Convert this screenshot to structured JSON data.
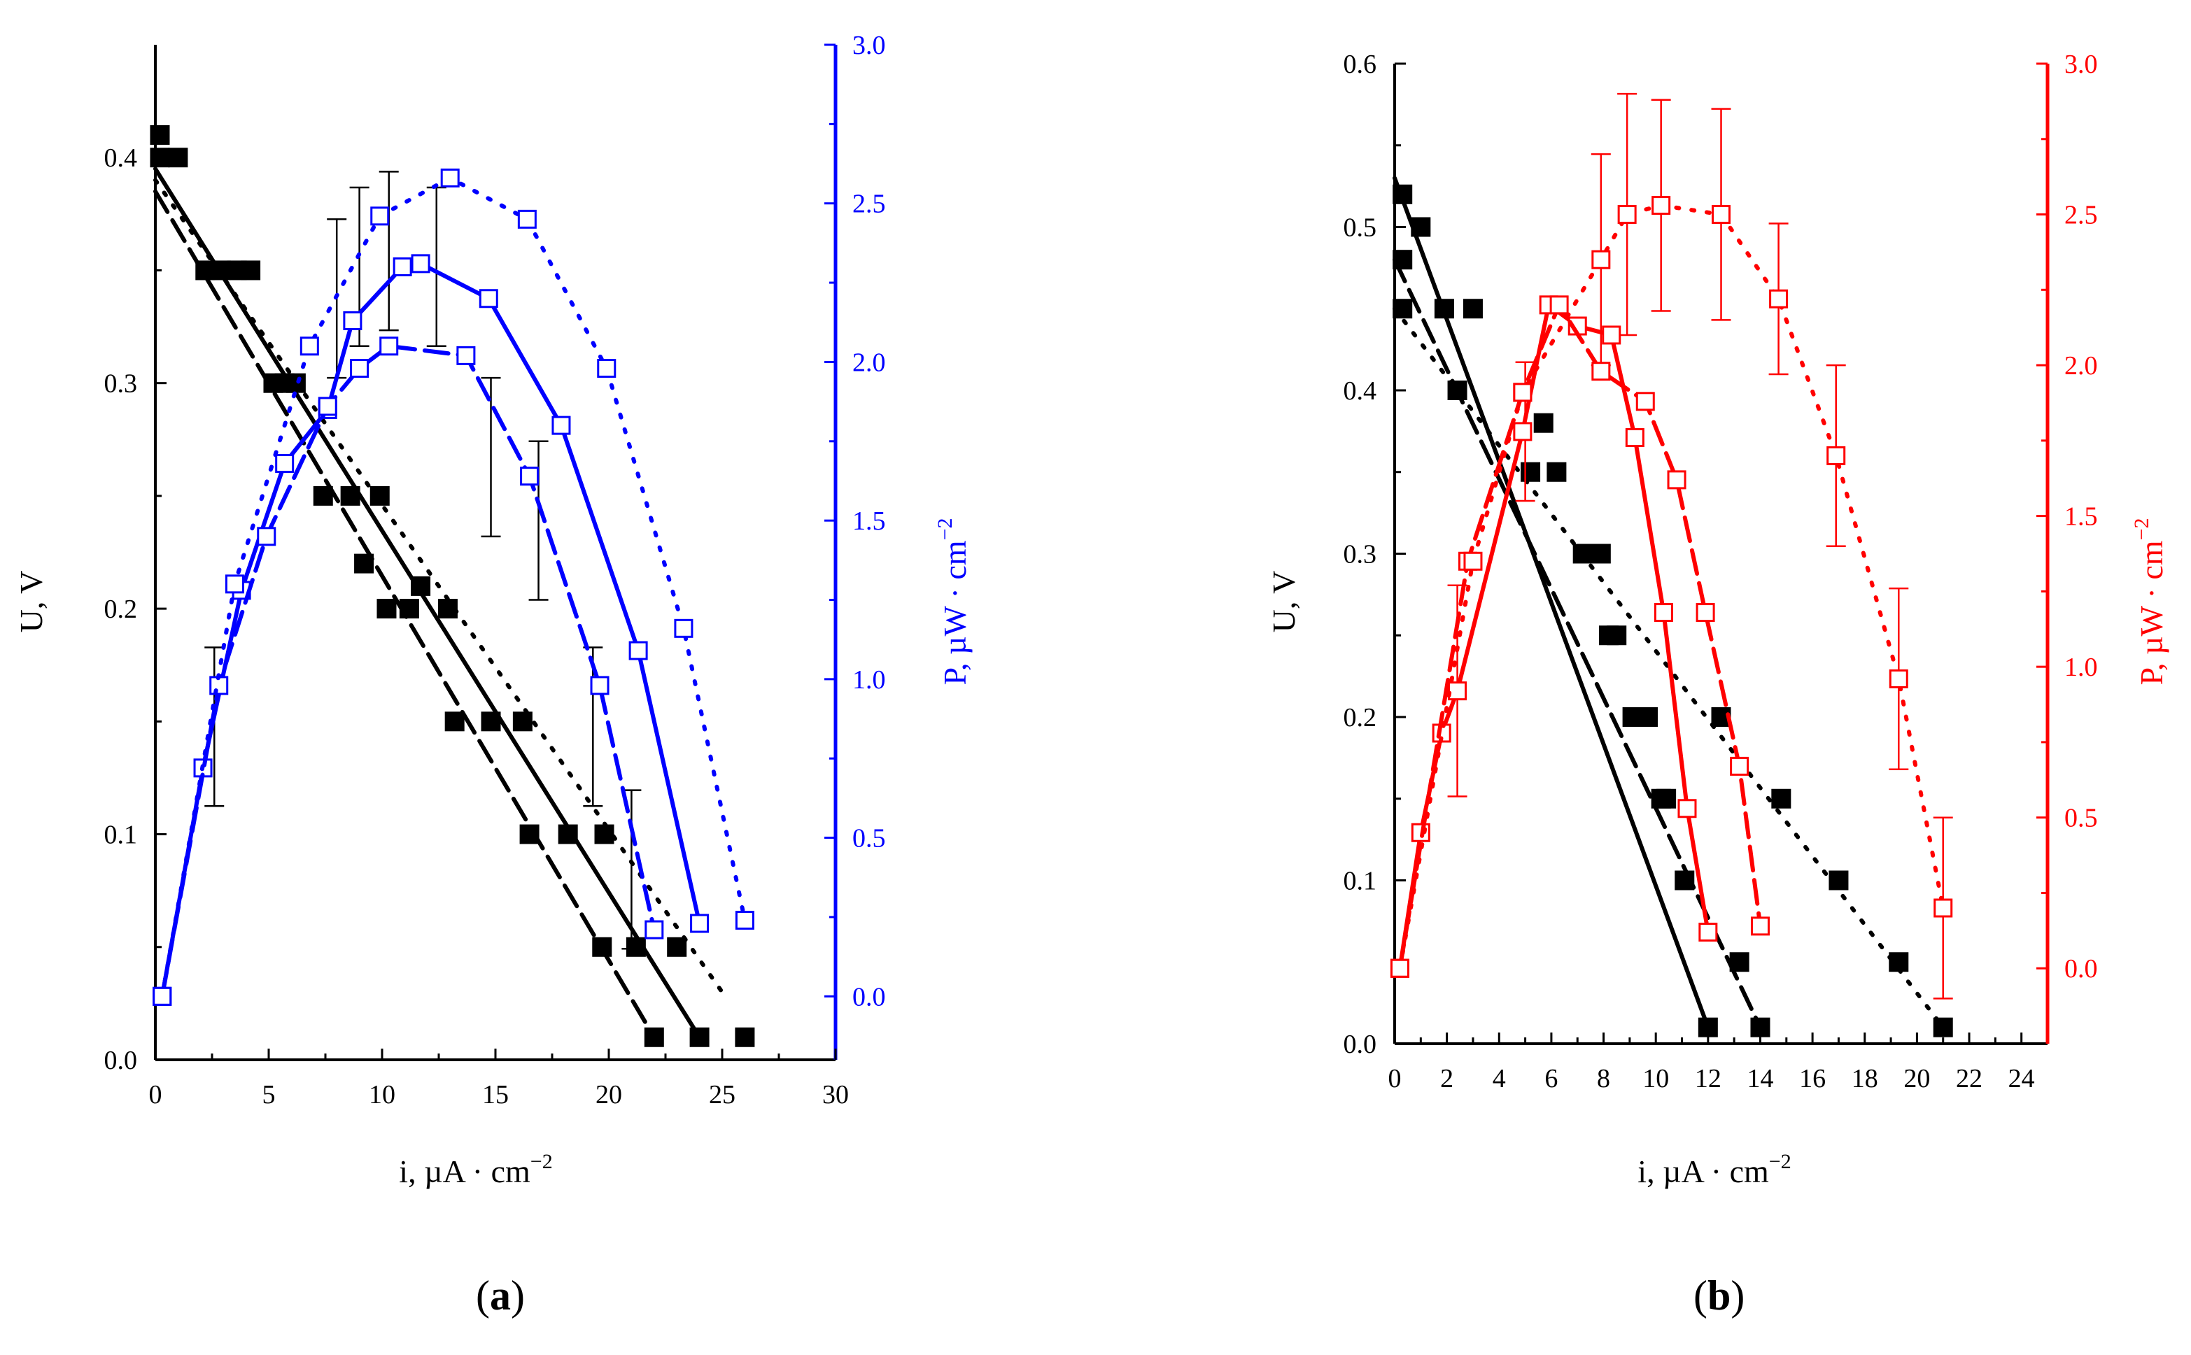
{
  "colors": {
    "black": "#000000",
    "blue": "#0000ff",
    "red": "#ff0000"
  },
  "panels": [
    {
      "label": "a"
    },
    {
      "label": "b"
    }
  ],
  "chart_data": [
    {
      "type": "scatter",
      "panel": "a",
      "xlabel": "i, µA · cm",
      "xlabel_sup": "−2",
      "ylabel_left": "U, V",
      "ylabel_right": "P, µW · cm",
      "ylabel_right_sup": "−2",
      "xlim": [
        0,
        30
      ],
      "ylim_left": [
        0,
        0.45
      ],
      "ylim_right": [
        -0.2,
        3.0
      ],
      "xticks": [
        0,
        5,
        10,
        15,
        20,
        25,
        30
      ],
      "yticks_left": [
        0.0,
        0.1,
        0.2,
        0.3,
        0.4
      ],
      "yticks_right": [
        0.0,
        0.5,
        1.0,
        1.5,
        2.0,
        2.5,
        3.0
      ],
      "tick_labels": {
        "x": [
          "0",
          "5",
          "10",
          "15",
          "20",
          "25",
          "30"
        ],
        "yl": [
          "0.0",
          "0.1",
          "0.2",
          "0.3",
          "0.4"
        ],
        "yr": [
          "0.0",
          "0.5",
          "1.0",
          "1.5",
          "2.0",
          "2.5",
          "3.0"
        ]
      },
      "right_color": "#0000ff",
      "voltage_series": [
        {
          "name": "U solid",
          "style": "solid",
          "fit": [
            [
              0,
              0.395
            ],
            [
              24,
              0.01
            ]
          ],
          "x": [
            0.2,
            2.2,
            4.2,
            6.2,
            9.2,
            11.2,
            13.2,
            16.2,
            18.2,
            21.2,
            24.0
          ],
          "y": [
            0.41,
            0.35,
            0.35,
            0.3,
            0.22,
            0.2,
            0.15,
            0.15,
            0.1,
            0.05,
            0.01
          ]
        },
        {
          "name": "U dashed",
          "style": "dashed",
          "fit": [
            [
              0,
              0.385
            ],
            [
              22,
              0.01
            ]
          ],
          "x": [
            0.2,
            2.9,
            5.2,
            7.4,
            10.2,
            11.7,
            14.8,
            16.5,
            19.7,
            22.0
          ],
          "y": [
            0.4,
            0.35,
            0.3,
            0.25,
            0.2,
            0.21,
            0.15,
            0.1,
            0.05,
            0.01
          ]
        },
        {
          "name": "U dotted",
          "style": "dotted",
          "fit": [
            [
              0,
              0.39
            ],
            [
              25,
              0.03
            ]
          ],
          "x": [
            1.0,
            3.6,
            5.7,
            8.6,
            9.9,
            12.9,
            19.8,
            23.0,
            26.0
          ],
          "y": [
            0.4,
            0.35,
            0.3,
            0.25,
            0.25,
            0.2,
            0.1,
            0.05,
            0.01
          ]
        }
      ],
      "power_series": [
        {
          "name": "P solid",
          "style": "solid",
          "x": [
            0.3,
            2.1,
            3.8,
            5.7,
            7.6,
            8.7,
            10.9,
            11.7,
            14.7,
            17.9,
            21.3,
            24.0
          ],
          "y": [
            0.0,
            0.72,
            1.28,
            1.68,
            1.85,
            2.13,
            2.3,
            2.31,
            2.2,
            1.8,
            1.09,
            0.23
          ]
        },
        {
          "name": "P dashed",
          "style": "dashed",
          "x": [
            0.3,
            2.8,
            4.9,
            7.6,
            9.0,
            10.3,
            13.7,
            16.5,
            19.6,
            22.0
          ],
          "y": [
            0.0,
            0.98,
            1.45,
            1.86,
            1.98,
            2.05,
            2.02,
            1.64,
            0.98,
            0.21
          ]
        },
        {
          "name": "P dotted",
          "style": "dotted",
          "x": [
            0.3,
            3.5,
            6.8,
            9.9,
            13.0,
            16.4,
            19.9,
            23.3,
            26.0
          ],
          "y": [
            0.0,
            1.3,
            2.05,
            2.46,
            2.58,
            2.45,
            1.98,
            1.16,
            0.24
          ]
        }
      ],
      "error_bars": [
        {
          "x": 2.6,
          "y": 0.85,
          "err": 0.25
        },
        {
          "x": 8.0,
          "y": 2.2,
          "err": 0.25
        },
        {
          "x": 9.0,
          "y": 2.3,
          "err": 0.25
        },
        {
          "x": 10.3,
          "y": 2.35,
          "err": 0.25
        },
        {
          "x": 12.4,
          "y": 2.3,
          "err": 0.25
        },
        {
          "x": 14.8,
          "y": 1.7,
          "err": 0.25
        },
        {
          "x": 16.9,
          "y": 1.5,
          "err": 0.25
        },
        {
          "x": 19.3,
          "y": 0.85,
          "err": 0.25
        },
        {
          "x": 21.0,
          "y": 0.4,
          "err": 0.25
        }
      ]
    },
    {
      "type": "scatter",
      "panel": "b",
      "xlabel": "i, µA · cm",
      "xlabel_sup": "−2",
      "ylabel_left": "U, V",
      "ylabel_right": "P, µW · cm",
      "ylabel_right_sup": "−2",
      "xlim": [
        0,
        25
      ],
      "ylim_left": [
        0,
        0.6
      ],
      "ylim_right": [
        -0.25,
        3.0
      ],
      "xticks": [
        0,
        2,
        4,
        6,
        8,
        10,
        12,
        14,
        16,
        18,
        20,
        22,
        24
      ],
      "yticks_left": [
        0.0,
        0.1,
        0.2,
        0.3,
        0.4,
        0.5,
        0.6
      ],
      "yticks_right": [
        0.0,
        0.5,
        1.0,
        1.5,
        2.0,
        2.5,
        3.0
      ],
      "tick_labels": {
        "x": [
          "0",
          "2",
          "4",
          "6",
          "8",
          "10",
          "12",
          "14",
          "16",
          "18",
          "20",
          "22",
          "24"
        ],
        "yl": [
          "0.0",
          "0.1",
          "0.2",
          "0.3",
          "0.4",
          "0.5",
          "0.6"
        ],
        "yr": [
          "0.0",
          "0.5",
          "1.0",
          "1.5",
          "2.0",
          "2.5",
          "3.0"
        ]
      },
      "right_color": "#ff0000",
      "voltage_series": [
        {
          "name": "U solid",
          "style": "solid",
          "fit": [
            [
              0,
              0.53
            ],
            [
              12,
              0.01
            ]
          ],
          "x": [
            0.3,
            1.0,
            1.9,
            5.2,
            6.2,
            7.2,
            8.2,
            9.1,
            10.2,
            11.1,
            12.0
          ],
          "y": [
            0.52,
            0.5,
            0.45,
            0.35,
            0.35,
            0.3,
            0.25,
            0.2,
            0.15,
            0.1,
            0.01
          ]
        },
        {
          "name": "U dashed",
          "style": "dashed",
          "fit": [
            [
              0,
              0.48
            ],
            [
              14,
              0.01
            ]
          ],
          "x": [
            0.3,
            2.4,
            5.7,
            7.9,
            9.7,
            12.5,
            13.2,
            14.0
          ],
          "y": [
            0.48,
            0.4,
            0.38,
            0.3,
            0.2,
            0.2,
            0.05,
            0.01
          ]
        },
        {
          "name": "U dotted",
          "style": "dotted",
          "fit": [
            [
              0,
              0.45
            ],
            [
              21,
              0.01
            ]
          ],
          "x": [
            0.3,
            3.0,
            8.5,
            10.4,
            14.8,
            17.0,
            19.3,
            21.0
          ],
          "y": [
            0.45,
            0.45,
            0.25,
            0.15,
            0.15,
            0.1,
            0.05,
            0.01
          ]
        }
      ],
      "power_series": [
        {
          "name": "P solid",
          "style": "solid",
          "x": [
            0.2,
            1.0,
            1.8,
            2.4,
            4.9,
            5.9,
            7.0,
            8.3,
            9.2,
            10.3,
            11.2,
            12.0
          ],
          "y": [
            0.0,
            0.45,
            0.78,
            0.92,
            1.78,
            2.2,
            2.13,
            2.1,
            1.76,
            1.18,
            0.53,
            0.12
          ]
        },
        {
          "name": "P dashed",
          "style": "dashed",
          "x": [
            0.2,
            2.8,
            4.9,
            6.3,
            7.9,
            9.6,
            10.8,
            11.9,
            13.2,
            14.0
          ],
          "y": [
            0.0,
            1.35,
            1.91,
            2.2,
            1.98,
            1.88,
            1.62,
            1.18,
            0.67,
            0.14
          ]
        },
        {
          "name": "P dotted",
          "style": "dotted",
          "x": [
            0.2,
            3.0,
            4.9,
            7.9,
            8.9,
            10.2,
            12.5,
            14.7,
            16.9,
            19.3,
            21.0
          ],
          "y": [
            0.0,
            1.35,
            1.91,
            2.35,
            2.5,
            2.53,
            2.5,
            2.22,
            1.7,
            0.96,
            0.2
          ]
        }
      ],
      "error_bars": [
        {
          "x": 2.4,
          "y": 0.92,
          "err": 0.35
        },
        {
          "x": 5.0,
          "y": 1.78,
          "err": 0.23
        },
        {
          "x": 7.9,
          "y": 2.35,
          "err": 0.35
        },
        {
          "x": 8.9,
          "y": 2.5,
          "err": 0.4
        },
        {
          "x": 10.2,
          "y": 2.53,
          "err": 0.35
        },
        {
          "x": 12.5,
          "y": 2.5,
          "err": 0.35
        },
        {
          "x": 14.7,
          "y": 2.22,
          "err": 0.25
        },
        {
          "x": 16.9,
          "y": 1.7,
          "err": 0.3
        },
        {
          "x": 19.3,
          "y": 0.96,
          "err": 0.3
        },
        {
          "x": 21.0,
          "y": 0.2,
          "err": 0.3
        }
      ]
    }
  ]
}
